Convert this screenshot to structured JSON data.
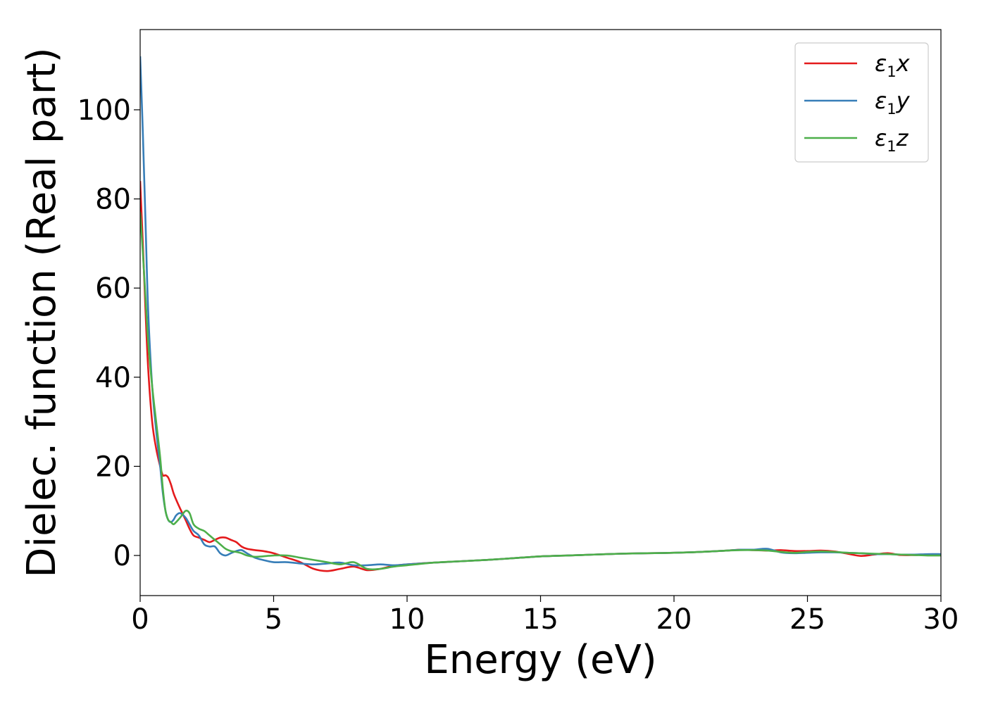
{
  "chart_data": {
    "type": "line",
    "title": "",
    "xlabel": "Energy (eV)",
    "ylabel": "Dielec. function (Real part)",
    "xlim": [
      0,
      30
    ],
    "ylim": [
      -9,
      118
    ],
    "xticks": [
      0,
      5,
      10,
      15,
      20,
      25,
      30
    ],
    "yticks": [
      0,
      20,
      40,
      60,
      80,
      100
    ],
    "grid": false,
    "legend_position": "top-right",
    "series": [
      {
        "name": "ε1x",
        "legend_base": "ε",
        "legend_sub": "1",
        "legend_tail": "x",
        "color": "#e41a1c",
        "x": [
          0,
          0.1,
          0.2,
          0.3,
          0.45,
          0.6,
          0.75,
          0.85,
          0.95,
          1.05,
          1.15,
          1.25,
          1.35,
          1.5,
          1.7,
          1.85,
          2.0,
          2.2,
          2.4,
          2.6,
          2.8,
          3.0,
          3.2,
          3.4,
          3.6,
          3.8,
          4.0,
          4.3,
          4.6,
          5.0,
          5.5,
          6.0,
          6.5,
          7.0,
          7.5,
          8.0,
          8.5,
          9.0,
          9.5,
          10,
          11,
          12,
          13,
          14,
          15,
          16,
          17,
          18,
          19,
          20,
          21,
          22,
          22.5,
          23,
          23.5,
          24,
          24.5,
          25,
          25.5,
          26,
          26.5,
          27,
          27.5,
          28,
          28.5,
          29,
          29.5,
          30
        ],
        "y": [
          84,
          70,
          55,
          42,
          30,
          24,
          20,
          18,
          18,
          17.5,
          16,
          14,
          12.5,
          10.5,
          8,
          6,
          4.5,
          4,
          3.5,
          3,
          3.5,
          4,
          4,
          3.5,
          3,
          2,
          1.5,
          1.2,
          1,
          0.5,
          -0.5,
          -1.5,
          -3,
          -3.5,
          -3,
          -2.5,
          -3.3,
          -3,
          -2.3,
          -2,
          -1.6,
          -1.3,
          -1,
          -0.6,
          -0.2,
          0,
          0.2,
          0.4,
          0.5,
          0.6,
          0.8,
          1.1,
          1.3,
          1.2,
          1.1,
          1.2,
          1.0,
          1.0,
          1.1,
          0.9,
          0.4,
          -0.1,
          0.2,
          0.5,
          0.1,
          0.1,
          0.2,
          0.2
        ]
      },
      {
        "name": "ε1y",
        "legend_base": "ε",
        "legend_sub": "1",
        "legend_tail": "y",
        "color": "#377eb8",
        "x": [
          0,
          0.1,
          0.2,
          0.3,
          0.45,
          0.6,
          0.75,
          0.85,
          0.95,
          1.05,
          1.15,
          1.25,
          1.35,
          1.5,
          1.7,
          1.85,
          2.0,
          2.2,
          2.4,
          2.6,
          2.8,
          3.0,
          3.2,
          3.4,
          3.6,
          3.8,
          4.0,
          4.3,
          4.6,
          5.0,
          5.5,
          6.0,
          6.5,
          7.0,
          7.5,
          8.0,
          8.5,
          9.0,
          9.5,
          10,
          11,
          12,
          13,
          14,
          15,
          16,
          17,
          18,
          19,
          20,
          21,
          22,
          22.5,
          23,
          23.5,
          24,
          24.5,
          25,
          25.5,
          26,
          26.5,
          27,
          27.5,
          28,
          28.5,
          29,
          29.5,
          30
        ],
        "y": [
          112,
          95,
          75,
          55,
          38,
          28,
          20,
          14,
          10,
          8,
          7.5,
          8,
          9,
          9.5,
          8.5,
          7,
          5.5,
          4.5,
          2.5,
          2,
          2,
          0.5,
          0,
          0.5,
          1,
          1.2,
          0.5,
          -0.5,
          -1,
          -1.5,
          -1.5,
          -1.8,
          -2,
          -1.8,
          -1.6,
          -2.2,
          -2.2,
          -2,
          -2.2,
          -2,
          -1.6,
          -1.3,
          -1,
          -0.6,
          -0.2,
          0,
          0.2,
          0.4,
          0.5,
          0.6,
          0.8,
          1.1,
          1.3,
          1.3,
          1.5,
          0.7,
          0.5,
          0.6,
          0.7,
          0.7,
          0.6,
          0.5,
          0.3,
          0.3,
          0.2,
          0.2,
          0.3,
          0.3
        ]
      },
      {
        "name": "ε1z",
        "legend_base": "ε",
        "legend_sub": "1",
        "legend_tail": "z",
        "color": "#4daf4a",
        "x": [
          0,
          0.1,
          0.2,
          0.3,
          0.45,
          0.6,
          0.75,
          0.85,
          0.95,
          1.05,
          1.15,
          1.25,
          1.35,
          1.5,
          1.7,
          1.85,
          2.0,
          2.2,
          2.4,
          2.6,
          2.8,
          3.0,
          3.2,
          3.4,
          3.6,
          3.8,
          4.0,
          4.3,
          4.6,
          5.0,
          5.5,
          6.0,
          6.5,
          7.0,
          7.5,
          8.0,
          8.5,
          9.0,
          9.5,
          10,
          11,
          12,
          13,
          14,
          15,
          16,
          17,
          18,
          19,
          20,
          21,
          22,
          22.5,
          23,
          23.5,
          24,
          24.5,
          25,
          25.5,
          26,
          26.5,
          27,
          27.5,
          28,
          28.5,
          29,
          29.5,
          30
        ],
        "y": [
          77,
          68,
          58,
          48,
          38,
          30,
          22,
          15,
          10,
          8,
          7.5,
          7,
          7.5,
          8.5,
          10,
          9.5,
          7,
          6,
          5.5,
          4.5,
          3.5,
          2.5,
          1.5,
          1,
          0.8,
          0.5,
          0,
          -0.3,
          -0.2,
          0,
          0,
          -0.5,
          -1,
          -1.5,
          -2,
          -1.5,
          -3,
          -3,
          -2.5,
          -2.2,
          -1.6,
          -1.3,
          -1,
          -0.6,
          -0.2,
          0,
          0.2,
          0.4,
          0.5,
          0.6,
          0.8,
          1.1,
          1.2,
          1.2,
          1.1,
          0.8,
          0.6,
          0.8,
          0.9,
          0.8,
          0.6,
          0.5,
          0.4,
          0.3,
          0.2,
          0.1,
          0.0,
          0.0
        ]
      }
    ]
  }
}
